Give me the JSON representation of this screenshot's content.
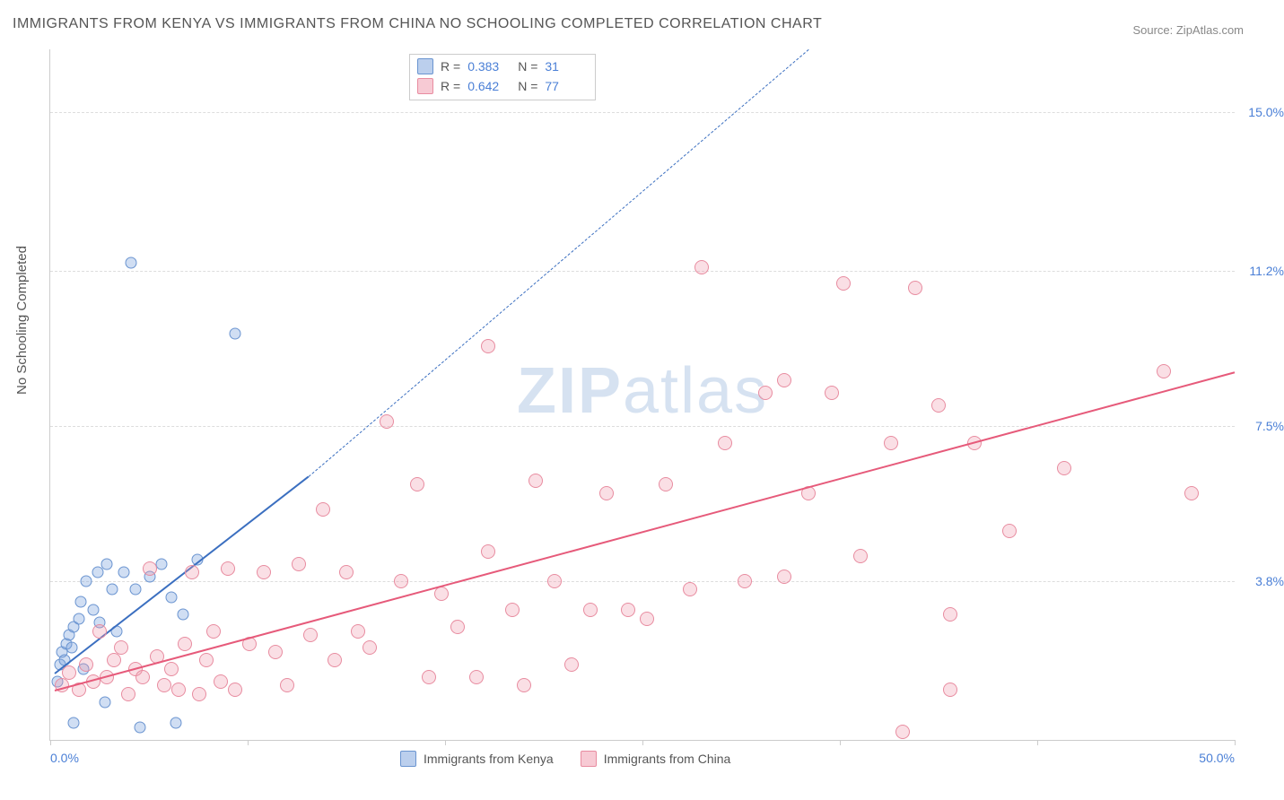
{
  "title": "IMMIGRANTS FROM KENYA VS IMMIGRANTS FROM CHINA NO SCHOOLING COMPLETED CORRELATION CHART",
  "source": "Source: ZipAtlas.com",
  "y_axis_label": "No Schooling Completed",
  "watermark_bold": "ZIP",
  "watermark_light": "atlas",
  "chart": {
    "type": "scatter",
    "background_color": "#ffffff",
    "grid_color": "#dddddd",
    "axis_color": "#cccccc",
    "tick_label_color": "#4a7fd6",
    "title_color": "#555555",
    "title_fontsize": 16,
    "label_fontsize": 15,
    "tick_fontsize": 14,
    "xlim": [
      0,
      50
    ],
    "ylim": [
      0,
      16.5
    ],
    "x_ticks": [
      0,
      8.33,
      16.67,
      25,
      33.33,
      41.67,
      50
    ],
    "x_tick_labels_shown": {
      "0": "0.0%",
      "50": "50.0%"
    },
    "y_gridlines": [
      3.8,
      7.5,
      11.2,
      15.0
    ],
    "y_tick_labels": [
      "3.8%",
      "7.5%",
      "11.2%",
      "15.0%"
    ],
    "marker_radius_blue": 6.5,
    "marker_radius_pink": 8,
    "series": [
      {
        "name": "Immigrants from Kenya",
        "color_fill": "rgba(120,160,220,0.35)",
        "color_stroke": "#6a94d0",
        "trend_color": "#3b6fc0",
        "trend_solid": {
          "x1": 0.2,
          "y1": 1.6,
          "x2": 10.9,
          "y2": 6.3
        },
        "trend_dashed": {
          "x1": 10.9,
          "y1": 6.3,
          "x2": 32,
          "y2": 16.5
        },
        "R": "0.383",
        "N": "31",
        "points": [
          [
            0.3,
            1.4
          ],
          [
            0.4,
            1.8
          ],
          [
            0.5,
            2.1
          ],
          [
            0.6,
            1.9
          ],
          [
            0.7,
            2.3
          ],
          [
            0.8,
            2.5
          ],
          [
            0.9,
            2.2
          ],
          [
            1.0,
            2.7
          ],
          [
            1.0,
            0.4
          ],
          [
            1.2,
            2.9
          ],
          [
            1.3,
            3.3
          ],
          [
            1.4,
            1.7
          ],
          [
            1.5,
            3.8
          ],
          [
            1.8,
            3.1
          ],
          [
            2.0,
            4.0
          ],
          [
            2.1,
            2.8
          ],
          [
            2.3,
            0.9
          ],
          [
            2.4,
            4.2
          ],
          [
            2.6,
            3.6
          ],
          [
            2.8,
            2.6
          ],
          [
            3.1,
            4.0
          ],
          [
            3.4,
            11.4
          ],
          [
            3.6,
            3.6
          ],
          [
            3.8,
            0.3
          ],
          [
            4.2,
            3.9
          ],
          [
            4.7,
            4.2
          ],
          [
            5.1,
            3.4
          ],
          [
            5.6,
            3.0
          ],
          [
            6.2,
            4.3
          ],
          [
            5.3,
            0.4
          ],
          [
            7.8,
            9.7
          ]
        ]
      },
      {
        "name": "Immigrants from China",
        "color_fill": "rgba(240,150,170,0.30)",
        "color_stroke": "#e88ca0",
        "trend_color": "#e65a7a",
        "trend_solid": {
          "x1": 0.2,
          "y1": 1.2,
          "x2": 50,
          "y2": 8.8
        },
        "R": "0.642",
        "N": "77",
        "points": [
          [
            0.5,
            1.3
          ],
          [
            0.8,
            1.6
          ],
          [
            1.2,
            1.2
          ],
          [
            1.5,
            1.8
          ],
          [
            1.8,
            1.4
          ],
          [
            2.1,
            2.6
          ],
          [
            2.4,
            1.5
          ],
          [
            2.7,
            1.9
          ],
          [
            3.0,
            2.2
          ],
          [
            3.3,
            1.1
          ],
          [
            3.6,
            1.7
          ],
          [
            3.9,
            1.5
          ],
          [
            4.2,
            4.1
          ],
          [
            4.5,
            2.0
          ],
          [
            4.8,
            1.3
          ],
          [
            5.1,
            1.7
          ],
          [
            5.4,
            1.2
          ],
          [
            5.7,
            2.3
          ],
          [
            6.0,
            4.0
          ],
          [
            6.3,
            1.1
          ],
          [
            6.6,
            1.9
          ],
          [
            6.9,
            2.6
          ],
          [
            7.2,
            1.4
          ],
          [
            7.5,
            4.1
          ],
          [
            7.8,
            1.2
          ],
          [
            8.4,
            2.3
          ],
          [
            9.0,
            4.0
          ],
          [
            9.5,
            2.1
          ],
          [
            10.0,
            1.3
          ],
          [
            10.5,
            4.2
          ],
          [
            11.0,
            2.5
          ],
          [
            11.5,
            5.5
          ],
          [
            12.0,
            1.9
          ],
          [
            12.5,
            4.0
          ],
          [
            13.0,
            2.6
          ],
          [
            13.5,
            2.2
          ],
          [
            14.2,
            7.6
          ],
          [
            14.8,
            3.8
          ],
          [
            15.5,
            6.1
          ],
          [
            16.0,
            1.5
          ],
          [
            16.5,
            3.5
          ],
          [
            17.2,
            2.7
          ],
          [
            18.0,
            1.5
          ],
          [
            18.5,
            4.5
          ],
          [
            18.5,
            9.4
          ],
          [
            19.5,
            3.1
          ],
          [
            20.0,
            1.3
          ],
          [
            20.5,
            6.2
          ],
          [
            21.3,
            3.8
          ],
          [
            22.0,
            1.8
          ],
          [
            22.8,
            3.1
          ],
          [
            23.5,
            5.9
          ],
          [
            24.4,
            3.1
          ],
          [
            25.2,
            2.9
          ],
          [
            26.0,
            6.1
          ],
          [
            27.0,
            3.6
          ],
          [
            27.5,
            11.3
          ],
          [
            28.5,
            7.1
          ],
          [
            29.3,
            3.8
          ],
          [
            30.2,
            8.3
          ],
          [
            31.0,
            8.6
          ],
          [
            31.0,
            3.9
          ],
          [
            32.0,
            5.9
          ],
          [
            33.0,
            8.3
          ],
          [
            33.5,
            10.9
          ],
          [
            34.2,
            4.4
          ],
          [
            35.5,
            7.1
          ],
          [
            36.0,
            0.2
          ],
          [
            36.5,
            10.8
          ],
          [
            37.5,
            8.0
          ],
          [
            38.0,
            3.0
          ],
          [
            38.0,
            1.2
          ],
          [
            39.0,
            7.1
          ],
          [
            40.5,
            5.0
          ],
          [
            42.8,
            6.5
          ],
          [
            47.0,
            8.8
          ],
          [
            48.2,
            5.9
          ]
        ]
      }
    ]
  },
  "legend_top": {
    "rows": [
      {
        "swatch": "blue",
        "r_label": "R =",
        "r_val": "0.383",
        "n_label": "N =",
        "n_val": "31"
      },
      {
        "swatch": "pink",
        "r_label": "R =",
        "r_val": "0.642",
        "n_label": "N =",
        "n_val": "77"
      }
    ]
  },
  "legend_bottom": {
    "items": [
      {
        "swatch": "blue",
        "label": "Immigrants from Kenya"
      },
      {
        "swatch": "pink",
        "label": "Immigrants from China"
      }
    ]
  }
}
